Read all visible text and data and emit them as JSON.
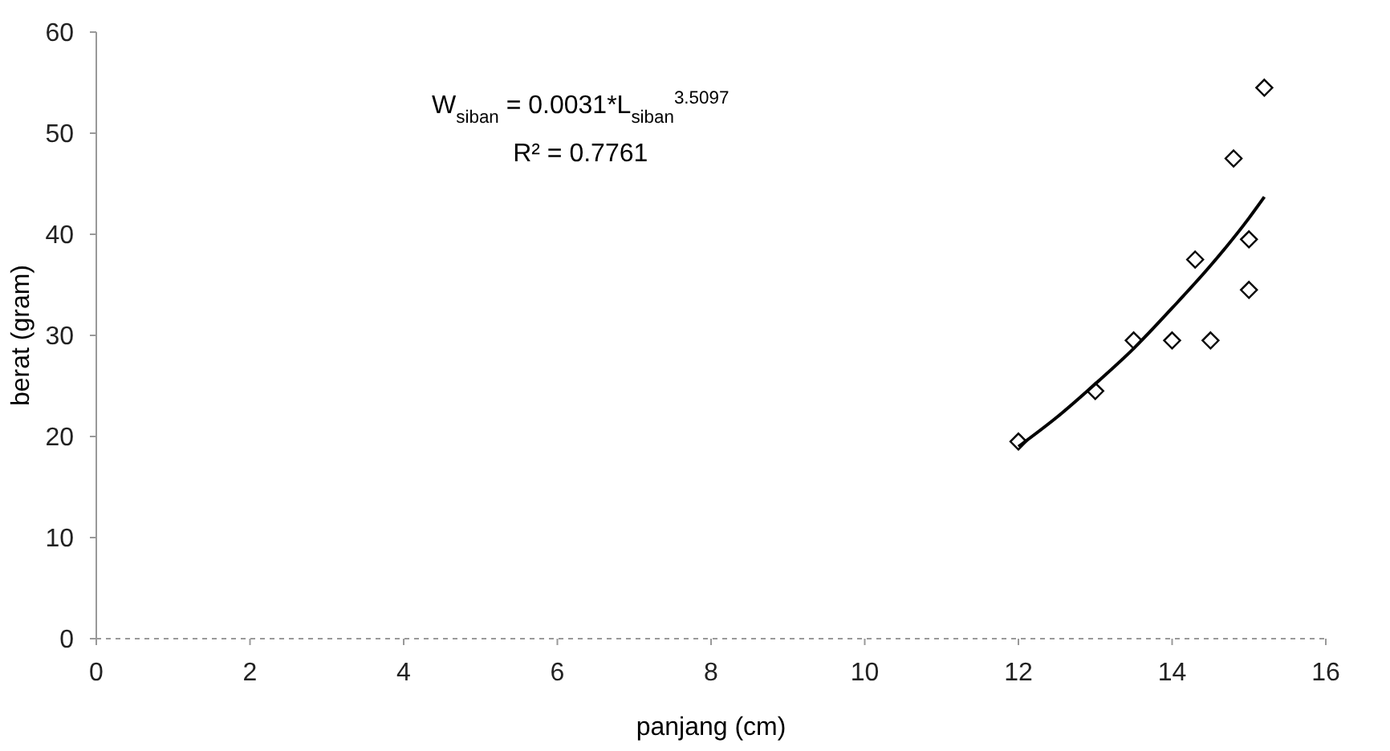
{
  "chart_data": {
    "type": "scatter",
    "xlabel": "panjang (cm)",
    "ylabel": "berat (gram)",
    "xlim": [
      0,
      16
    ],
    "ylim": [
      0,
      60
    ],
    "xticks": [
      0,
      2,
      4,
      6,
      8,
      10,
      12,
      14,
      16
    ],
    "yticks": [
      0,
      10,
      20,
      30,
      40,
      50,
      60
    ],
    "grid": false,
    "marker": "diamond",
    "annotations": [
      "W$_{siban}$ = 0.0031*L$_{siban}$$^{3.5097}$",
      "R² = 0.7761"
    ],
    "series": [
      {
        "color": "#000000",
        "x": [
          12,
          13,
          13.5,
          14,
          14.3,
          14.5,
          14.8,
          15,
          15,
          15.2
        ],
        "values": [
          19.5,
          24.5,
          29.5,
          29.5,
          37.5,
          29.5,
          47.5,
          39.5,
          34.5,
          54.5
        ]
      },
      {
        "type": "line",
        "color": "#000000",
        "marker": "none",
        "line_style": "solid",
        "x": [
          12,
          12.5,
          13,
          13.5,
          14,
          14.5,
          15,
          15.2
        ],
        "values": [
          19,
          21.9,
          25.2,
          28.7,
          32.7,
          36.9,
          41.6,
          43.7
        ]
      }
    ]
  }
}
